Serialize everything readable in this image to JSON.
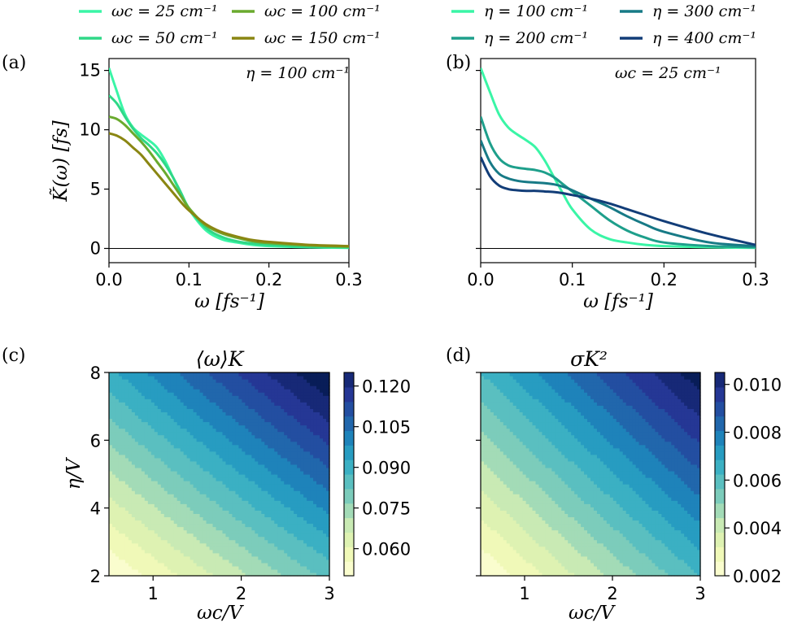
{
  "chart_data": [
    {
      "panel": "(a)",
      "type": "line",
      "annotation": "η = 100 cm⁻¹",
      "xlabel": "ω [fs⁻¹]",
      "ylabel": "K̃(ω) [fs]",
      "xlim": [
        0,
        0.3
      ],
      "ylim": [
        -1.2,
        16
      ],
      "xticks": [
        "0.0",
        "0.1",
        "0.2",
        "0.3"
      ],
      "yticks": [
        "0",
        "5",
        "10",
        "15"
      ],
      "legend_position": "top-left (above plot)",
      "series": [
        {
          "name": "ωc = 25 cm⁻¹",
          "color": "#3af5a6",
          "x": [
            0,
            0.01,
            0.02,
            0.03,
            0.04,
            0.05,
            0.06,
            0.07,
            0.08,
            0.09,
            0.1,
            0.12,
            0.14,
            0.16,
            0.18,
            0.2,
            0.25,
            0.3
          ],
          "y": [
            15.2,
            13.2,
            11.3,
            10.2,
            9.6,
            9.1,
            8.5,
            7.4,
            6.0,
            4.6,
            3.3,
            1.6,
            0.8,
            0.5,
            0.3,
            0.2,
            0.1,
            0.05
          ]
        },
        {
          "name": "ωc = 50 cm⁻¹",
          "color": "#2fd887",
          "x": [
            0,
            0.01,
            0.02,
            0.03,
            0.04,
            0.05,
            0.06,
            0.07,
            0.08,
            0.09,
            0.1,
            0.12,
            0.14,
            0.16,
            0.18,
            0.2,
            0.25,
            0.3
          ],
          "y": [
            12.9,
            12.2,
            11.1,
            10.1,
            9.3,
            8.7,
            8.0,
            7.1,
            6.0,
            4.7,
            3.4,
            1.8,
            1.0,
            0.6,
            0.4,
            0.3,
            0.15,
            0.08
          ]
        },
        {
          "name": "ωc = 100 cm⁻¹",
          "color": "#6aaa2e",
          "x": [
            0,
            0.01,
            0.02,
            0.03,
            0.04,
            0.05,
            0.06,
            0.07,
            0.08,
            0.09,
            0.1,
            0.12,
            0.14,
            0.16,
            0.18,
            0.2,
            0.25,
            0.3
          ],
          "y": [
            11.1,
            10.9,
            10.4,
            9.7,
            9.0,
            8.2,
            7.3,
            6.4,
            5.4,
            4.4,
            3.4,
            2.0,
            1.3,
            0.9,
            0.6,
            0.45,
            0.25,
            0.15
          ]
        },
        {
          "name": "ωc = 150 cm⁻¹",
          "color": "#8a8612",
          "x": [
            0,
            0.01,
            0.02,
            0.03,
            0.04,
            0.05,
            0.06,
            0.07,
            0.08,
            0.09,
            0.1,
            0.12,
            0.14,
            0.16,
            0.18,
            0.2,
            0.25,
            0.3
          ],
          "y": [
            9.7,
            9.5,
            9.1,
            8.5,
            7.9,
            7.1,
            6.3,
            5.5,
            4.7,
            3.9,
            3.2,
            2.1,
            1.4,
            1.0,
            0.7,
            0.55,
            0.3,
            0.2
          ]
        }
      ]
    },
    {
      "panel": "(b)",
      "type": "line",
      "annotation": "ωc = 25 cm⁻¹",
      "xlabel": "ω [fs⁻¹]",
      "xlim": [
        0,
        0.3
      ],
      "ylim": [
        -1.2,
        16
      ],
      "xticks": [
        "0.0",
        "0.1",
        "0.2",
        "0.3"
      ],
      "legend_position": "top-right (above plot)",
      "series": [
        {
          "name": "η = 100 cm⁻¹",
          "color": "#3af5a6",
          "x": [
            0,
            0.01,
            0.02,
            0.03,
            0.04,
            0.05,
            0.06,
            0.07,
            0.08,
            0.09,
            0.1,
            0.12,
            0.14,
            0.16,
            0.18,
            0.2,
            0.25,
            0.3
          ],
          "y": [
            15.2,
            13.2,
            11.3,
            10.2,
            9.6,
            9.1,
            8.5,
            7.4,
            6.0,
            4.6,
            3.3,
            1.6,
            0.8,
            0.5,
            0.3,
            0.2,
            0.1,
            0.05
          ]
        },
        {
          "name": "η = 200 cm⁻¹",
          "color": "#1e9f8b",
          "x": [
            0,
            0.01,
            0.02,
            0.03,
            0.04,
            0.05,
            0.06,
            0.07,
            0.08,
            0.09,
            0.1,
            0.12,
            0.14,
            0.16,
            0.18,
            0.2,
            0.25,
            0.3
          ],
          "y": [
            11.1,
            8.9,
            7.6,
            7.0,
            6.8,
            6.7,
            6.6,
            6.4,
            6.0,
            5.4,
            4.8,
            3.6,
            2.4,
            1.5,
            0.9,
            0.5,
            0.2,
            0.1
          ]
        },
        {
          "name": "η = 300 cm⁻¹",
          "color": "#177a86",
          "x": [
            0,
            0.01,
            0.02,
            0.03,
            0.04,
            0.05,
            0.06,
            0.07,
            0.08,
            0.09,
            0.1,
            0.12,
            0.14,
            0.16,
            0.18,
            0.2,
            0.25,
            0.3
          ],
          "y": [
            9.1,
            7.3,
            6.3,
            5.9,
            5.7,
            5.6,
            5.55,
            5.5,
            5.4,
            5.2,
            4.9,
            4.2,
            3.5,
            2.7,
            2.0,
            1.4,
            0.5,
            0.2
          ]
        },
        {
          "name": "η = 400 cm⁻¹",
          "color": "#123d78",
          "x": [
            0,
            0.01,
            0.02,
            0.03,
            0.04,
            0.05,
            0.06,
            0.07,
            0.08,
            0.09,
            0.1,
            0.12,
            0.14,
            0.16,
            0.18,
            0.2,
            0.25,
            0.3
          ],
          "y": [
            7.7,
            6.1,
            5.3,
            5.0,
            4.9,
            4.85,
            4.85,
            4.8,
            4.75,
            4.65,
            4.5,
            4.2,
            3.8,
            3.3,
            2.8,
            2.3,
            1.2,
            0.3
          ]
        }
      ]
    },
    {
      "panel": "(c)",
      "type": "heatmap",
      "title": "⟨ω⟩K",
      "xlabel": "ωc/V",
      "ylabel": "η/V",
      "xlim": [
        0.5,
        3
      ],
      "ylim": [
        2,
        8
      ],
      "xticks": [
        "1",
        "2",
        "3"
      ],
      "yticks": [
        "2",
        "4",
        "6",
        "8"
      ],
      "colorbar_ticks": [
        "0.060",
        "0.075",
        "0.090",
        "0.105",
        "0.120"
      ],
      "colorbar_range": [
        0.05,
        0.125
      ],
      "colormap": "YlGnBu",
      "description": "value increases with both ωc/V and η/V; min ≈0.05 at bottom-left, max ≈0.125 at top-right"
    },
    {
      "panel": "(d)",
      "type": "heatmap",
      "title": "σK²",
      "xlabel": "ωc/V",
      "xlim": [
        0.5,
        3
      ],
      "ylim": [
        2,
        8
      ],
      "xticks": [
        "1",
        "2",
        "3"
      ],
      "colorbar_ticks": [
        "0.002",
        "0.004",
        "0.006",
        "0.008",
        "0.010"
      ],
      "colorbar_range": [
        0.002,
        0.0105
      ],
      "colormap": "YlGnBu",
      "description": "value increases with both ωc/V and η/V; min ≈0.002 at bottom-left, max ≈0.0105 at top-right"
    }
  ]
}
